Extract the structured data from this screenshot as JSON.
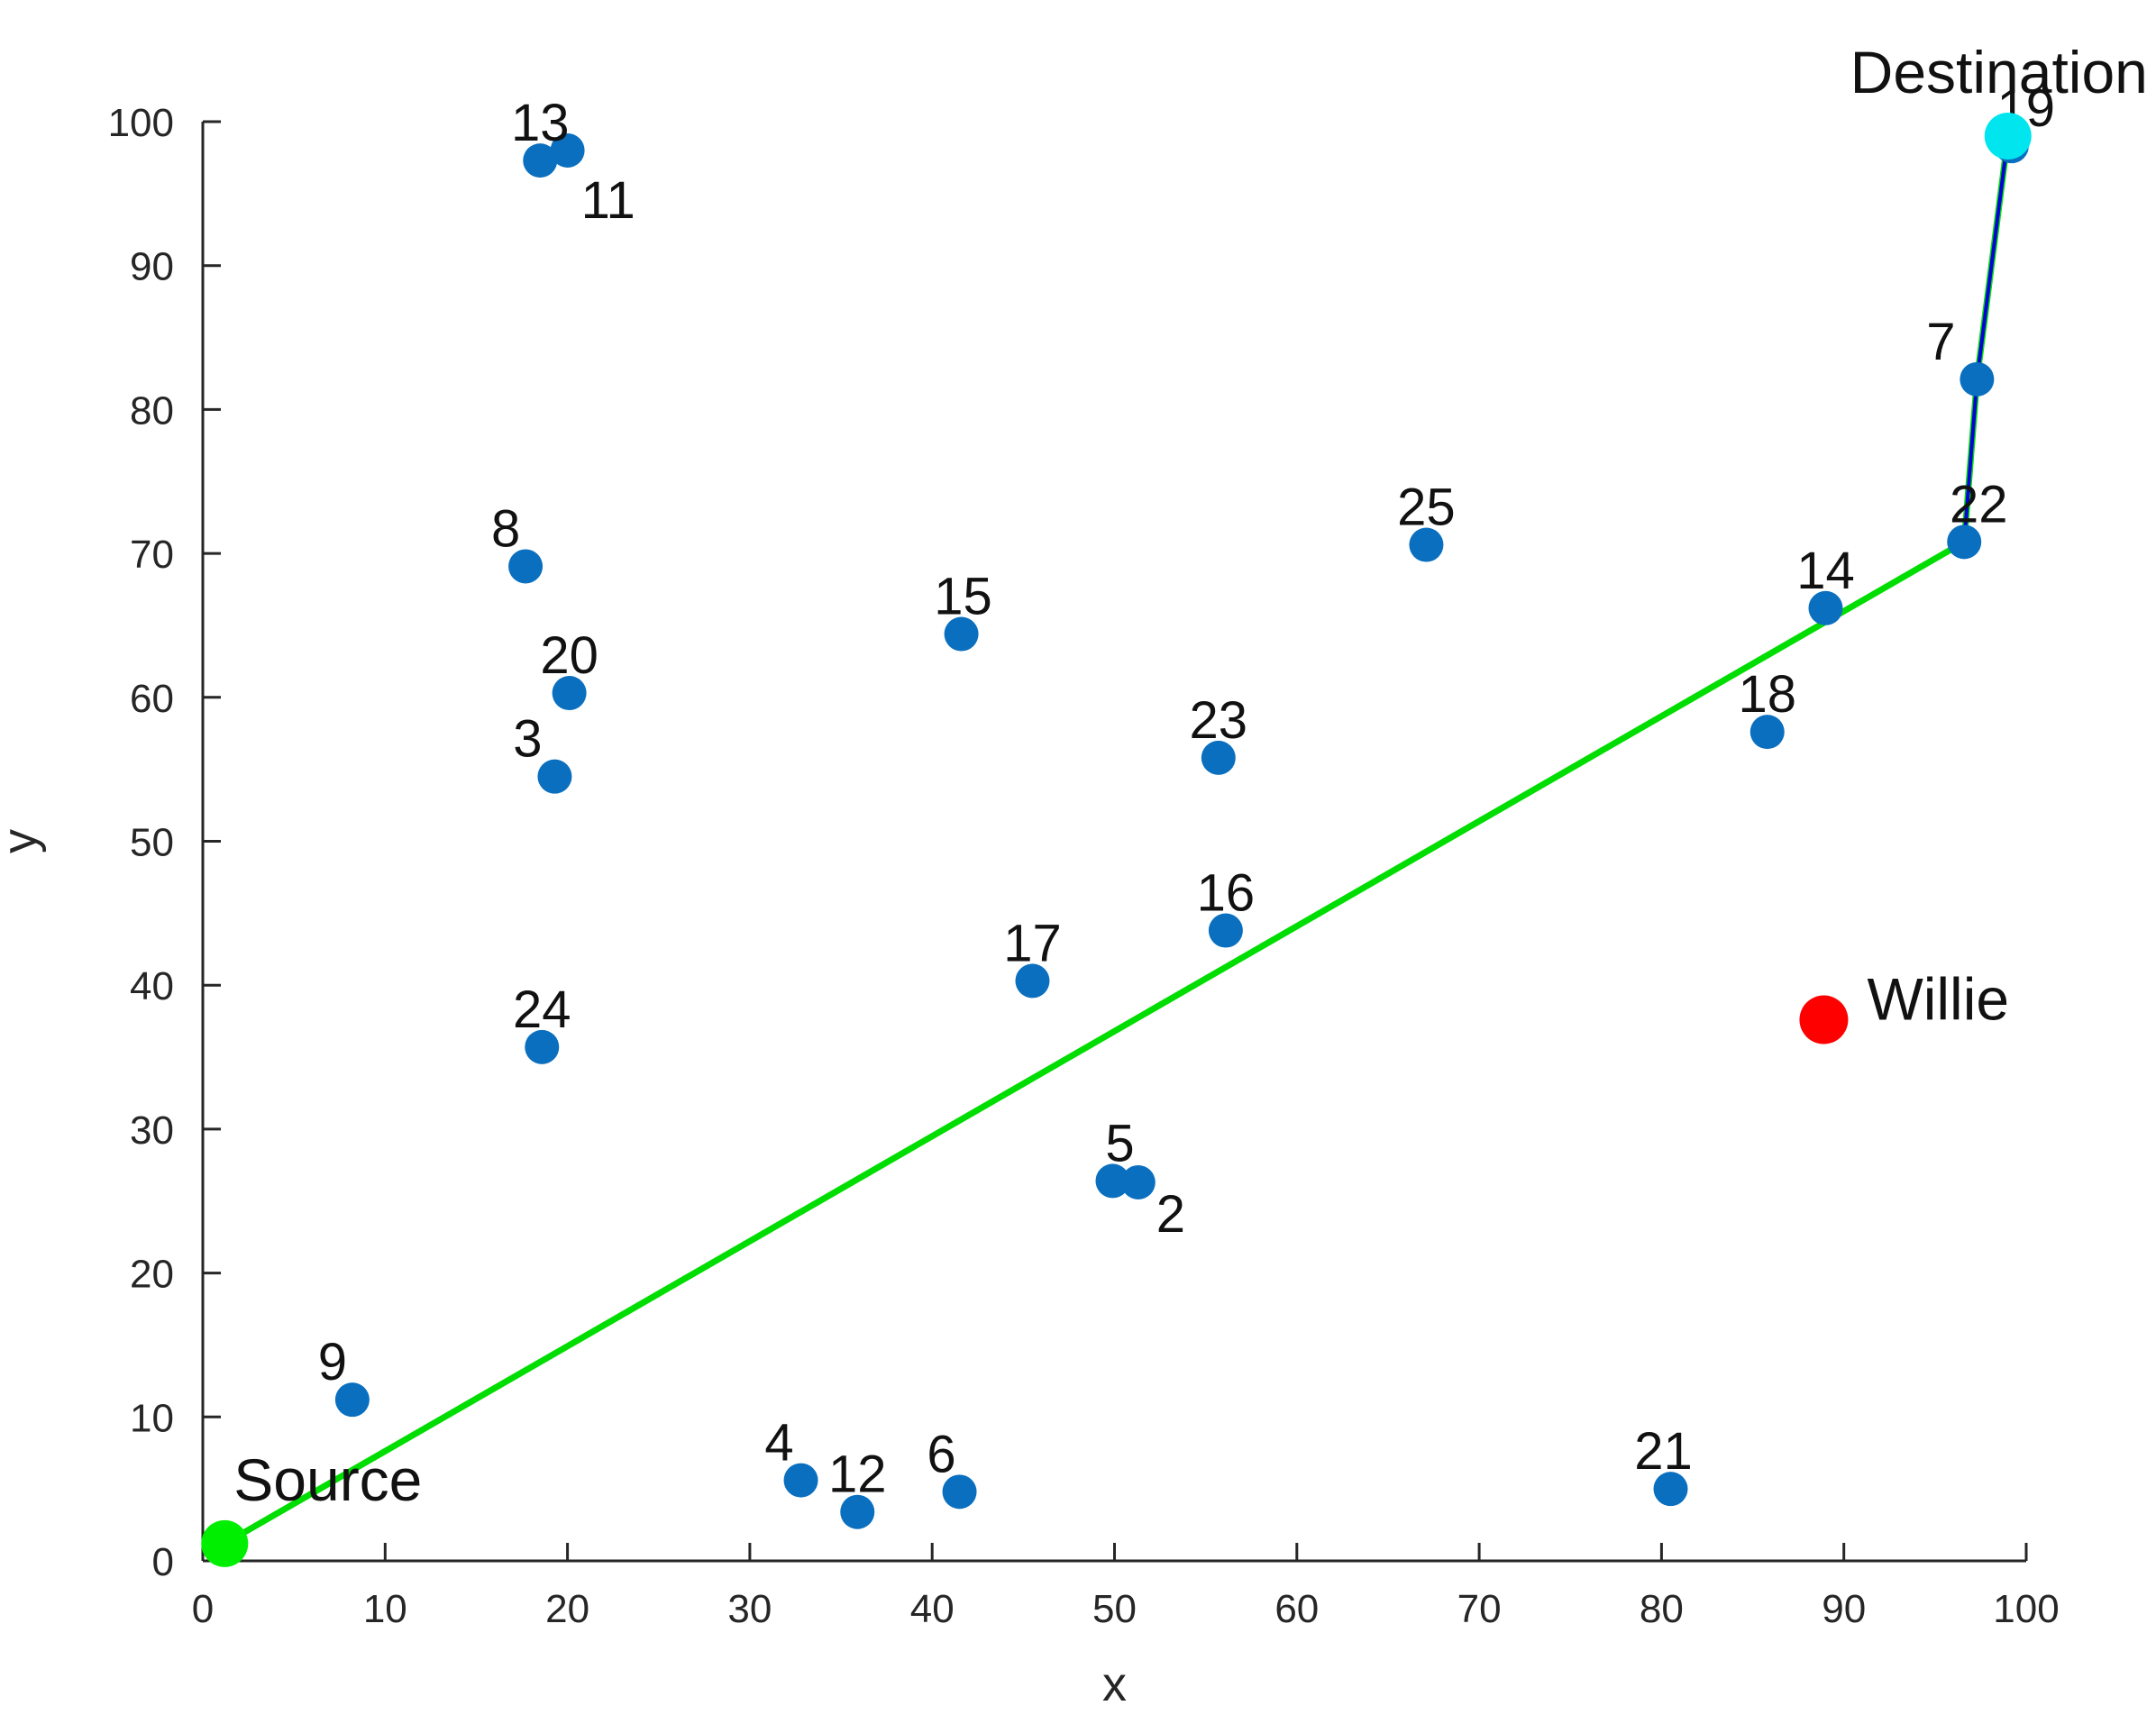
{
  "chart_data": {
    "type": "scatter",
    "xlabel": "x",
    "ylabel": "y",
    "xlim": [
      0,
      100
    ],
    "ylim": [
      0,
      100
    ],
    "xticks": [
      "0",
      "10",
      "20",
      "30",
      "40",
      "50",
      "60",
      "70",
      "80",
      "90",
      "100"
    ],
    "yticks": [
      "0",
      "10",
      "20",
      "30",
      "40",
      "50",
      "60",
      "70",
      "80",
      "90",
      "100"
    ],
    "grid": false,
    "nodes": [
      {
        "label": "2",
        "x": 51.3,
        "y": 26.3
      },
      {
        "label": "3",
        "x": 19.3,
        "y": 54.5
      },
      {
        "label": "4",
        "x": 32.8,
        "y": 5.6
      },
      {
        "label": "5",
        "x": 49.9,
        "y": 26.4
      },
      {
        "label": "6",
        "x": 41.5,
        "y": 4.8
      },
      {
        "label": "7",
        "x": 97.3,
        "y": 82.1
      },
      {
        "label": "8",
        "x": 17.7,
        "y": 69.1
      },
      {
        "label": "9",
        "x": 8.2,
        "y": 11.2
      },
      {
        "label": "11",
        "x": 20.0,
        "y": 98.0
      },
      {
        "label": "12",
        "x": 35.9,
        "y": 3.4
      },
      {
        "label": "13",
        "x": 18.5,
        "y": 97.3
      },
      {
        "label": "14",
        "x": 89.0,
        "y": 66.2
      },
      {
        "label": "15",
        "x": 41.6,
        "y": 64.4
      },
      {
        "label": "16",
        "x": 56.1,
        "y": 43.8
      },
      {
        "label": "17",
        "x": 45.5,
        "y": 40.3
      },
      {
        "label": "18",
        "x": 85.8,
        "y": 57.6
      },
      {
        "label": "19",
        "x": 99.2,
        "y": 98.3
      },
      {
        "label": "20",
        "x": 20.1,
        "y": 60.3
      },
      {
        "label": "21",
        "x": 80.5,
        "y": 5.0
      },
      {
        "label": "22",
        "x": 96.6,
        "y": 70.8
      },
      {
        "label": "23",
        "x": 55.7,
        "y": 55.8
      },
      {
        "label": "24",
        "x": 18.6,
        "y": 35.7
      },
      {
        "label": "25",
        "x": 67.1,
        "y": 70.6
      }
    ],
    "special_points": [
      {
        "label": "Source",
        "x": 1.2,
        "y": 1.2,
        "color": "#00ee00"
      },
      {
        "label": "Destination",
        "x": 99.0,
        "y": 99.0,
        "color": "#00e5ee"
      },
      {
        "label": "Willie",
        "x": 88.9,
        "y": 37.6,
        "color": "#ff0000"
      }
    ],
    "paths": [
      {
        "color": "#00dd00",
        "points": [
          [
            1.2,
            1.2
          ],
          [
            96.6,
            70.8
          ],
          [
            97.3,
            82.1
          ],
          [
            99.0,
            99.0
          ]
        ]
      },
      {
        "color": "#0000dd",
        "points": [
          [
            96.6,
            70.8
          ],
          [
            97.3,
            82.1
          ],
          [
            99.0,
            99.0
          ]
        ]
      }
    ],
    "node_color": "#0a6fbf"
  }
}
